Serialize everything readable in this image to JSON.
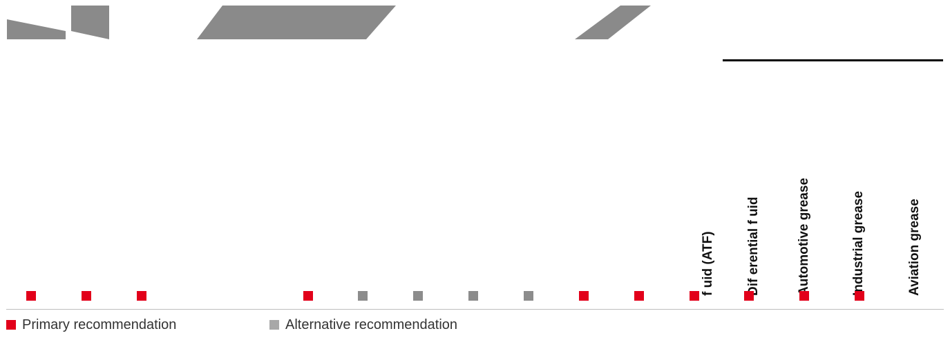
{
  "columns": [
    {
      "label": "f uid (ATF)"
    },
    {
      "label": "Dif erential f uid"
    },
    {
      "label": "Automotive grease"
    },
    {
      "label": "Industrial grease"
    },
    {
      "label": "Aviation grease"
    }
  ],
  "markers": [
    "primary",
    "primary",
    "primary",
    "primary",
    "alternative",
    "alternative",
    "alternative",
    "alternative",
    "primary",
    "primary",
    "primary",
    "primary",
    "primary",
    "primary"
  ],
  "legend": {
    "primary": "Primary recommendation",
    "alternative": "Alternative recommendation"
  },
  "colors": {
    "primary": "#e2001a",
    "alternative": "#8c8c8c",
    "decor": "#8a8a8a"
  }
}
